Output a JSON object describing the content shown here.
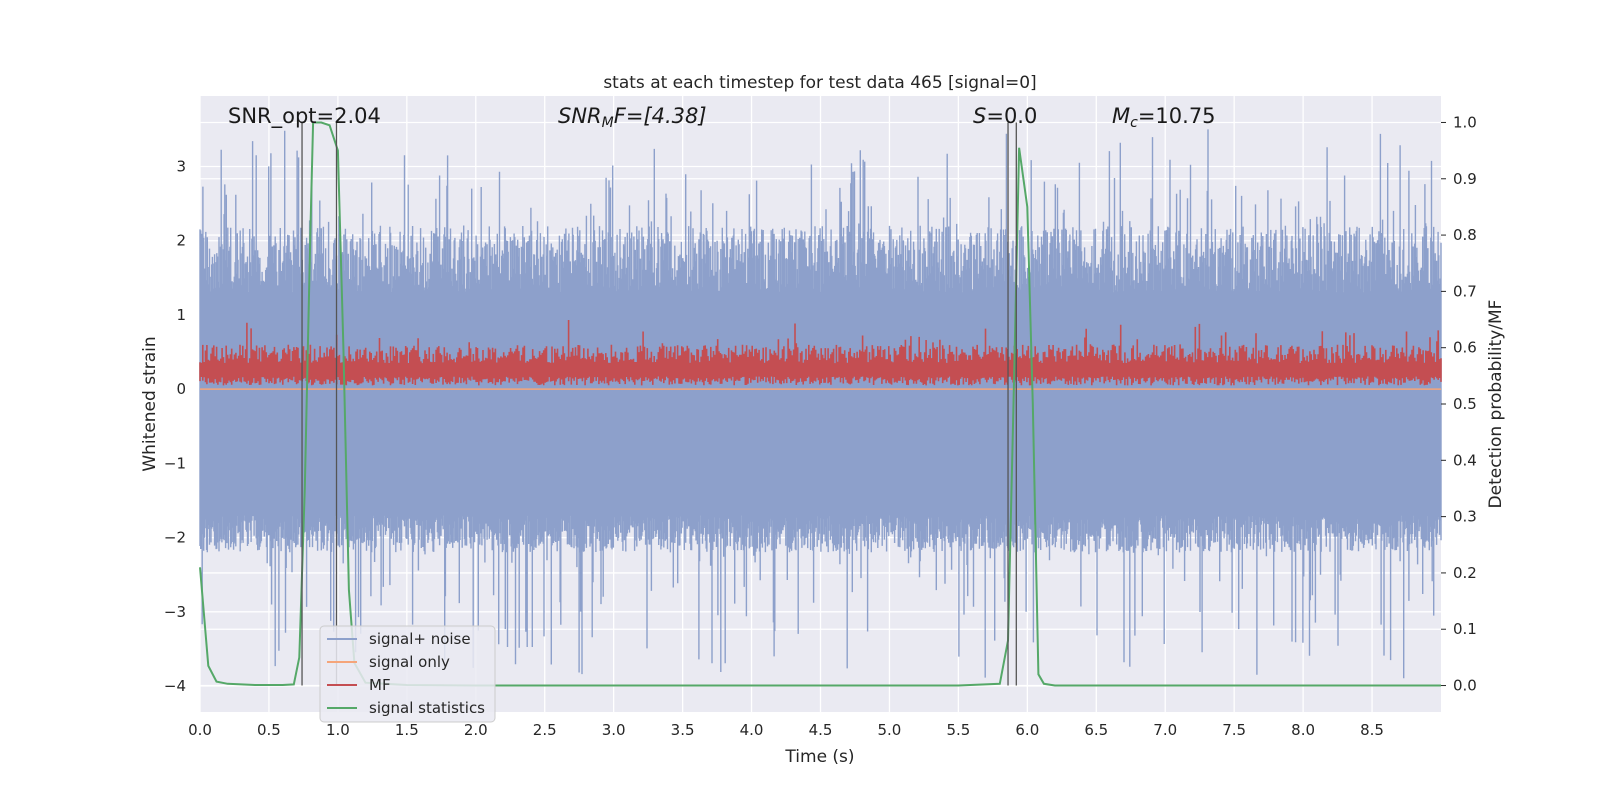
{
  "chart_data": {
    "type": "line",
    "title": "stats at each timestep for test data 465 [signal=0]",
    "xlabel": "Time (s)",
    "ylabel": "Whitened strain",
    "y2label": "Detection probability/MF",
    "xlim": [
      0.0,
      9.0
    ],
    "ylim": [
      -4.35,
      3.95
    ],
    "y2lim": [
      -0.047,
      1.047
    ],
    "xticks": [
      "0.0",
      "0.5",
      "1.0",
      "1.5",
      "2.0",
      "2.5",
      "3.0",
      "3.5",
      "4.0",
      "4.5",
      "5.0",
      "5.5",
      "6.0",
      "6.5",
      "7.0",
      "7.5",
      "8.0",
      "8.5"
    ],
    "yticks": [
      "3",
      "2",
      "1",
      "0",
      "−1",
      "−2",
      "−3",
      "−4"
    ],
    "y2ticks": [
      "1.0",
      "0.9",
      "0.8",
      "0.7",
      "0.6",
      "0.5",
      "0.4",
      "0.3",
      "0.2",
      "0.1",
      "0.0"
    ],
    "grid": true,
    "legend_placement": "lower-left",
    "annotations": {
      "snr_opt": "SNR_opt=2.04",
      "snr_mf_base": "SNR",
      "snr_mf_sub": "M",
      "snr_mf_rest": "F=[4.38]",
      "s_italic": "S",
      "s_rest": "=0.0",
      "mc_italic": "M",
      "mc_sub": "c",
      "mc_rest": "=10.75"
    },
    "series": [
      {
        "name": "signal+ noise",
        "axis": "left",
        "color": "#8da0cb",
        "description": "noise band",
        "envelope_upper": 1.3,
        "envelope_lower": -1.7,
        "peak_max": 3.6,
        "trough_min": -4.0
      },
      {
        "name": "signal only",
        "axis": "left",
        "color": "#f5a57a",
        "values_constant": 0.0
      },
      {
        "name": "MF",
        "axis": "left",
        "color": "#c44e52",
        "band_lower": 0.05,
        "band_upper": 0.6
      },
      {
        "name": "signal statistics",
        "axis": "right",
        "color": "#55a868",
        "x": [
          0.0,
          0.06,
          0.12,
          0.2,
          0.3,
          0.4,
          0.5,
          0.6,
          0.68,
          0.72,
          0.76,
          0.8,
          0.82,
          0.88,
          0.94,
          1.0,
          1.04,
          1.08,
          1.12,
          1.2,
          1.5,
          2.0,
          3.0,
          4.0,
          5.0,
          5.5,
          5.8,
          5.86,
          5.9,
          5.94,
          6.0,
          6.04,
          6.08,
          6.12,
          6.2,
          7.0,
          8.0,
          9.0
        ],
        "values": [
          0.21,
          0.035,
          0.007,
          0.003,
          0.002,
          0.001,
          0.001,
          0.001,
          0.002,
          0.05,
          0.35,
          0.8,
          1.0,
          1.0,
          0.995,
          0.95,
          0.6,
          0.17,
          0.04,
          0.005,
          0.001,
          0.0,
          0.0,
          0.0,
          0.0,
          0.0,
          0.003,
          0.08,
          0.5,
          0.955,
          0.85,
          0.5,
          0.02,
          0.003,
          0.0,
          0.0,
          0.0,
          0.0
        ]
      }
    ],
    "vertical_markers_x": [
      0.74,
      0.99,
      5.86,
      5.92
    ]
  }
}
